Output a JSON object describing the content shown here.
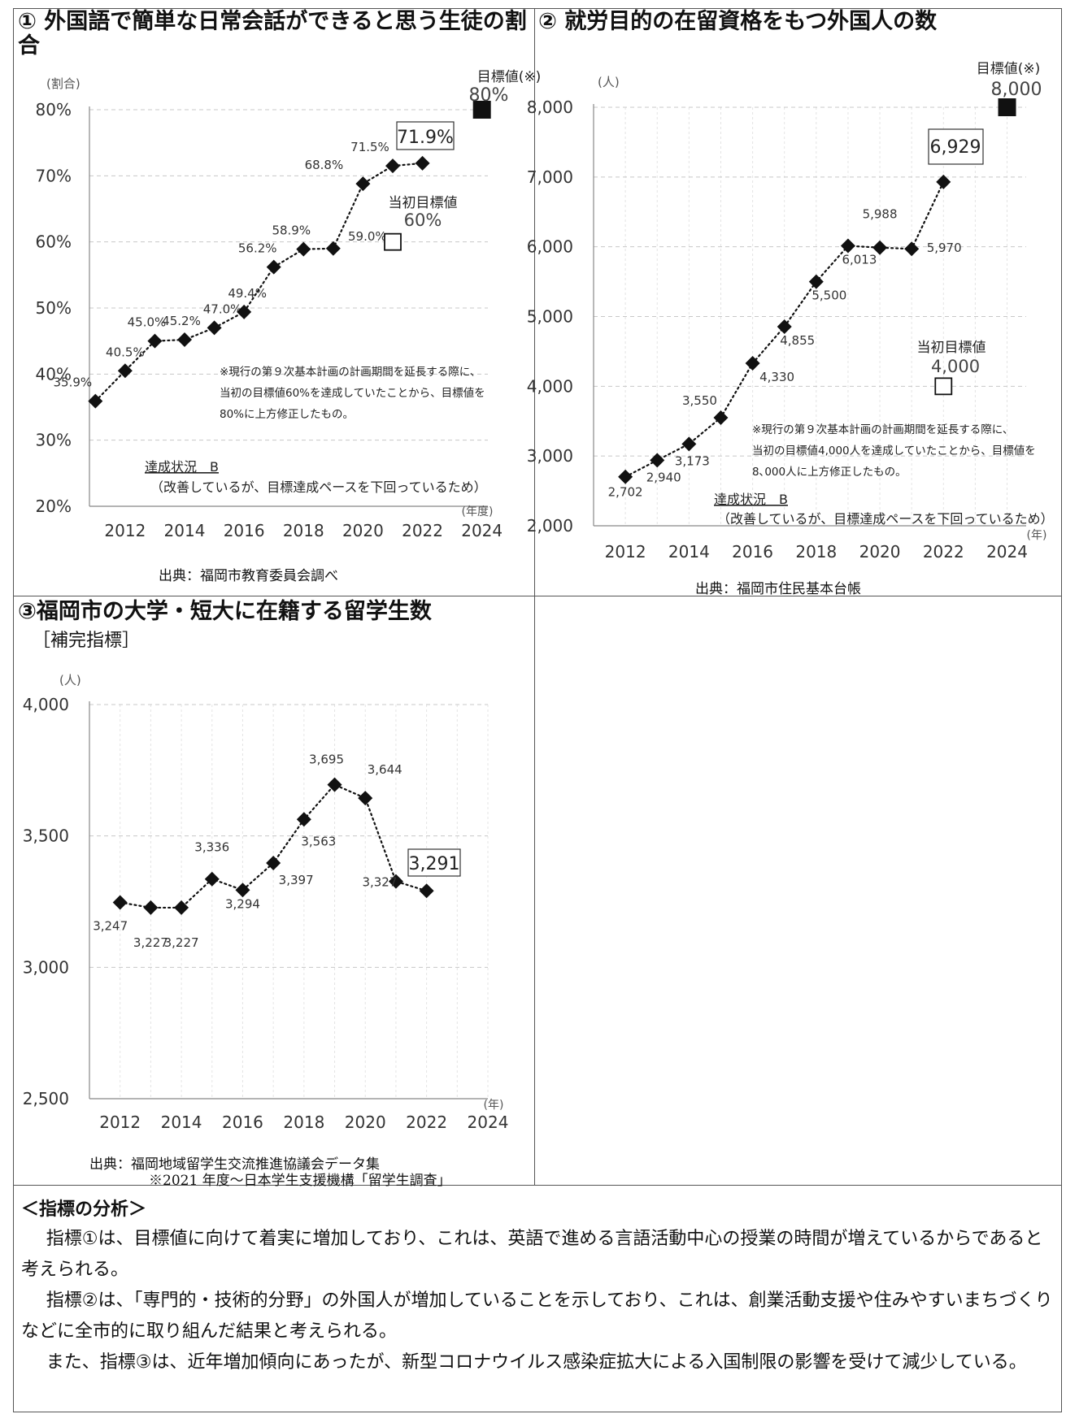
{
  "panel1": {
    "title": "① 外国語で簡単な日常会話ができると思う生徒の割合",
    "unit_label": "(割合)",
    "xunit_label": "(年度)",
    "target_label": "目標値(※)",
    "target_value_label": "80%",
    "initial_target_label": "当初目標値",
    "initial_target_value_label": "60%",
    "highlight_label": "71.9%",
    "note_lines": [
      "※現行の第９次基本計画の計画期間を延長する際に、",
      "当初の目標値60%を達成していたことから、目標値を",
      "80%に上方修正したもの。"
    ],
    "status_label": "達成状況　B",
    "status_note": "（改善しているが、目標達成ペースを下回っているため）",
    "source": "出典：福岡市教育委員会調べ"
  },
  "panel2": {
    "title": "② 就労目的の在留資格をもつ外国人の数",
    "unit_label": "(人)",
    "xunit_label": "(年)",
    "target_label": "目標値(※)",
    "target_value_label": "8,000",
    "initial_target_label": "当初目標値",
    "initial_target_value_label": "4,000",
    "highlight_label": "6,929",
    "note_lines": [
      "※現行の第９次基本計画の計画期間を延長する際に、",
      "当初の目標値4,000人を達成していたことから、目標値を",
      "8､000人に上方修正したもの。"
    ],
    "status_label": "達成状況　B",
    "status_note": "（改善しているが、目標達成ペースを下回っているため）",
    "source": "出典：福岡市住民基本台帳"
  },
  "panel3": {
    "title": "③福岡市の大学・短大に在籍する留学生数",
    "subtitle": "［補完指標］",
    "unit_label": "(人)",
    "xunit_label": "(年)",
    "highlight_label": "3,291",
    "source_line1": "出典：福岡地域留学生交流推進協議会データ集",
    "source_line2": "※2021 年度～日本学生支援機構「留学生調査」"
  },
  "analysis": {
    "title": "＜指標の分析＞",
    "paragraphs": [
      "指標①は、目標値に向けて着実に増加しており、これは、英語で進める言語活動中心の授業の時間が増えているからであると考えられる。",
      "指標②は、「専門的・技術的分野」の外国人が増加していることを示しており、これは、創業活動支援や住みやすいまちづくりなどに全市的に取り組んだ結果と考えられる。",
      "また、指標③は、近年増加傾向にあったが、新型コロナウイルス感染症拡大による入国制限の影響を受けて減少している。"
    ]
  },
  "chart_data": [
    {
      "type": "line",
      "x": [
        2011,
        2012,
        2013,
        2014,
        2015,
        2016,
        2017,
        2018,
        2019,
        2020,
        2021,
        2022
      ],
      "values": [
        35.9,
        40.5,
        45.0,
        45.2,
        47.0,
        49.4,
        56.2,
        58.9,
        59.0,
        68.8,
        71.5,
        71.9
      ],
      "data_labels": [
        "35.9%",
        "40.5%",
        "45.0%",
        "45.2%",
        "47.0%",
        "49.4%",
        "56.2%",
        "58.9%",
        "59.0%",
        "68.8%",
        "71.5%",
        "71.9%"
      ],
      "target": {
        "x": 2024,
        "value": 80
      },
      "initial_target": {
        "x": 2021,
        "value": 60
      },
      "ylim": [
        20,
        80
      ],
      "yticks": [
        20,
        30,
        40,
        50,
        60,
        70,
        80
      ],
      "ytick_labels": [
        "20%",
        "30%",
        "40%",
        "50%",
        "60%",
        "70%",
        "80%"
      ],
      "xlim": [
        2010.8,
        2024.2
      ],
      "xticks": [
        2012,
        2014,
        2016,
        2018,
        2020,
        2022,
        2024
      ],
      "xtick_labels": [
        "2012",
        "2014",
        "2016",
        "2018",
        "2020",
        "2022",
        "2024"
      ],
      "grid": true
    },
    {
      "type": "line",
      "x": [
        2012,
        2013,
        2014,
        2015,
        2016,
        2017,
        2018,
        2019,
        2020,
        2021,
        2022
      ],
      "values": [
        2702,
        2940,
        3173,
        3550,
        4330,
        4855,
        5500,
        6013,
        5988,
        5970,
        6929
      ],
      "data_labels": [
        "2,702",
        "2,940",
        "3,173",
        "3,550",
        "4,330",
        "4,855",
        "5,500",
        "6,013",
        "5,988",
        "5,970",
        "6,929"
      ],
      "target": {
        "x": 2024,
        "value": 8000
      },
      "initial_target": {
        "x": 2022,
        "value": 4000
      },
      "ylim": [
        2000,
        8000
      ],
      "yticks": [
        2000,
        3000,
        4000,
        5000,
        6000,
        7000,
        8000
      ],
      "ytick_labels": [
        "2,000",
        "3,000",
        "4,000",
        "5,000",
        "6,000",
        "7,000",
        "8,000"
      ],
      "xlim": [
        2011,
        2024.6
      ],
      "xticks": [
        2012,
        2014,
        2016,
        2018,
        2020,
        2022,
        2024
      ],
      "xtick_labels": [
        "2012",
        "2014",
        "2016",
        "2018",
        "2020",
        "2022",
        "2024"
      ],
      "grid": true
    },
    {
      "type": "line",
      "x": [
        2012,
        2013,
        2014,
        2015,
        2016,
        2017,
        2018,
        2019,
        2020,
        2021,
        2022
      ],
      "values": [
        3247,
        3227,
        3227,
        3336,
        3294,
        3397,
        3563,
        3695,
        3644,
        3327,
        3291
      ],
      "data_labels": [
        "3,247",
        "3,227",
        "3,227",
        "3,336",
        "3,294",
        "3,397",
        "3,563",
        "3,695",
        "3,644",
        "3,327",
        "3,291"
      ],
      "ylim": [
        2500,
        4000
      ],
      "yticks": [
        2500,
        3000,
        3500,
        4000
      ],
      "ytick_labels": [
        "2,500",
        "3,000",
        "3,500",
        "4,000"
      ],
      "xlim": [
        2011,
        2024
      ],
      "xticks": [
        2012,
        2014,
        2016,
        2018,
        2020,
        2022,
        2024
      ],
      "xtick_labels": [
        "2012",
        "2014",
        "2016",
        "2018",
        "2020",
        "2022",
        "2024"
      ],
      "grid": true
    }
  ]
}
